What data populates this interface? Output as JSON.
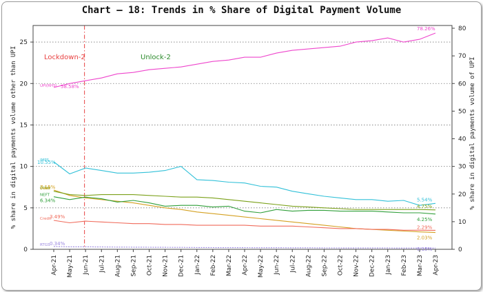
{
  "chart_data": {
    "type": "line",
    "title": "Chart – 18: Trends in % Share of Digital Payment Volume",
    "ylabel_left": "% share in digital payments volume other than UPI",
    "ylabel_right": "% share in digital payments volume of UPI",
    "ylim_left": [
      0,
      27
    ],
    "ylim_right": [
      0,
      81
    ],
    "yticks_left": [
      0,
      5,
      10,
      15,
      20,
      25
    ],
    "yticks_right": [
      0,
      10,
      20,
      30,
      40,
      50,
      60,
      70,
      80
    ],
    "x_tick_labels": [
      "Apr-21",
      "May-21",
      "Jun-21",
      "Jul-21",
      "Aug-21",
      "Sep-21",
      "Oct-21",
      "Nov-21",
      "Dec-21",
      "Jan-22",
      "Feb-22",
      "Mar-22",
      "Apr-22",
      "May-22",
      "Jun-22",
      "Jul-22",
      "Aug-22",
      "Sep-22",
      "Oct-22",
      "Nov-22",
      "Dec-22",
      "Jan-23",
      "Feb-23",
      "Mar-23",
      "Apr-23"
    ],
    "annotations": [
      {
        "text": "Lockdown-2",
        "color": "#e84040"
      },
      {
        "text": "Unlock-2",
        "color": "#2a8a2a"
      }
    ],
    "series": [
      {
        "name": "UPI(RHS)",
        "axis": "right",
        "color": "#ee44cc",
        "start_label": "58.58%",
        "end_label": "78.26%",
        "values": [
          58.58,
          60.0,
          61.0,
          62.0,
          63.5,
          64.0,
          65.0,
          65.5,
          66.0,
          67.0,
          68.0,
          68.5,
          69.5,
          69.5,
          71.0,
          72.0,
          72.5,
          73.0,
          73.5,
          75.0,
          75.5,
          76.5,
          75.0,
          76.0,
          78.26
        ]
      },
      {
        "name": "IMPS",
        "axis": "left",
        "color": "#30c0d8",
        "start_label": "10.55%",
        "end_label": "5.54%",
        "values": [
          10.55,
          9.1,
          9.8,
          9.5,
          9.2,
          9.2,
          9.3,
          9.5,
          10.0,
          8.4,
          8.3,
          8.1,
          8.0,
          7.6,
          7.5,
          7.0,
          6.7,
          6.4,
          6.2,
          6.0,
          6.0,
          5.8,
          5.9,
          5.3,
          5.54
        ]
      },
      {
        "name": "Debit",
        "axis": "left",
        "color": "#d4a020",
        "start_label": "7.15%",
        "end_label": "2.03%",
        "values": [
          7.15,
          6.5,
          6.2,
          6.0,
          5.8,
          5.6,
          5.3,
          5.0,
          4.8,
          4.5,
          4.3,
          4.1,
          3.9,
          3.7,
          3.5,
          3.3,
          3.1,
          2.9,
          2.7,
          2.5,
          2.4,
          2.3,
          2.2,
          2.1,
          2.03
        ]
      },
      {
        "name": "NEFT",
        "axis": "left",
        "color": "#2e9e38",
        "start_label": "6.34%",
        "end_label": "4.25%",
        "values": [
          6.34,
          6.0,
          6.3,
          6.1,
          5.7,
          5.9,
          5.6,
          5.2,
          5.3,
          5.3,
          5.1,
          5.2,
          4.6,
          4.4,
          4.8,
          4.6,
          4.7,
          4.7,
          4.6,
          4.6,
          4.6,
          4.5,
          4.4,
          4.4,
          4.25
        ]
      },
      {
        "name": "Other",
        "axis": "left",
        "color": "#7aa018",
        "start_label": "",
        "end_label": "4.75%",
        "values": [
          7.0,
          6.6,
          6.5,
          6.6,
          6.6,
          6.6,
          6.5,
          6.4,
          6.3,
          6.3,
          6.2,
          6.0,
          5.8,
          5.6,
          5.4,
          5.2,
          5.1,
          5.0,
          4.9,
          4.8,
          4.8,
          4.8,
          4.8,
          4.8,
          4.75
        ]
      },
      {
        "name": "Credit",
        "axis": "left",
        "color": "#f06a5a",
        "start_label": "3.49%",
        "end_label": "2.29%",
        "values": [
          3.49,
          3.2,
          3.4,
          3.3,
          3.2,
          3.1,
          3.1,
          3.0,
          3.0,
          2.9,
          2.9,
          2.9,
          2.9,
          2.8,
          2.8,
          2.8,
          2.7,
          2.6,
          2.5,
          2.5,
          2.4,
          2.4,
          2.3,
          2.3,
          2.29
        ]
      },
      {
        "name": "RTGS",
        "axis": "left",
        "color": "#9a86e0",
        "start_label": "0.34%",
        "end_label": "0.15%",
        "values": [
          0.34,
          0.3,
          0.3,
          0.28,
          0.27,
          0.26,
          0.25,
          0.24,
          0.23,
          0.22,
          0.21,
          0.2,
          0.2,
          0.19,
          0.19,
          0.18,
          0.18,
          0.17,
          0.17,
          0.16,
          0.16,
          0.16,
          0.15,
          0.15,
          0.15
        ]
      }
    ]
  }
}
